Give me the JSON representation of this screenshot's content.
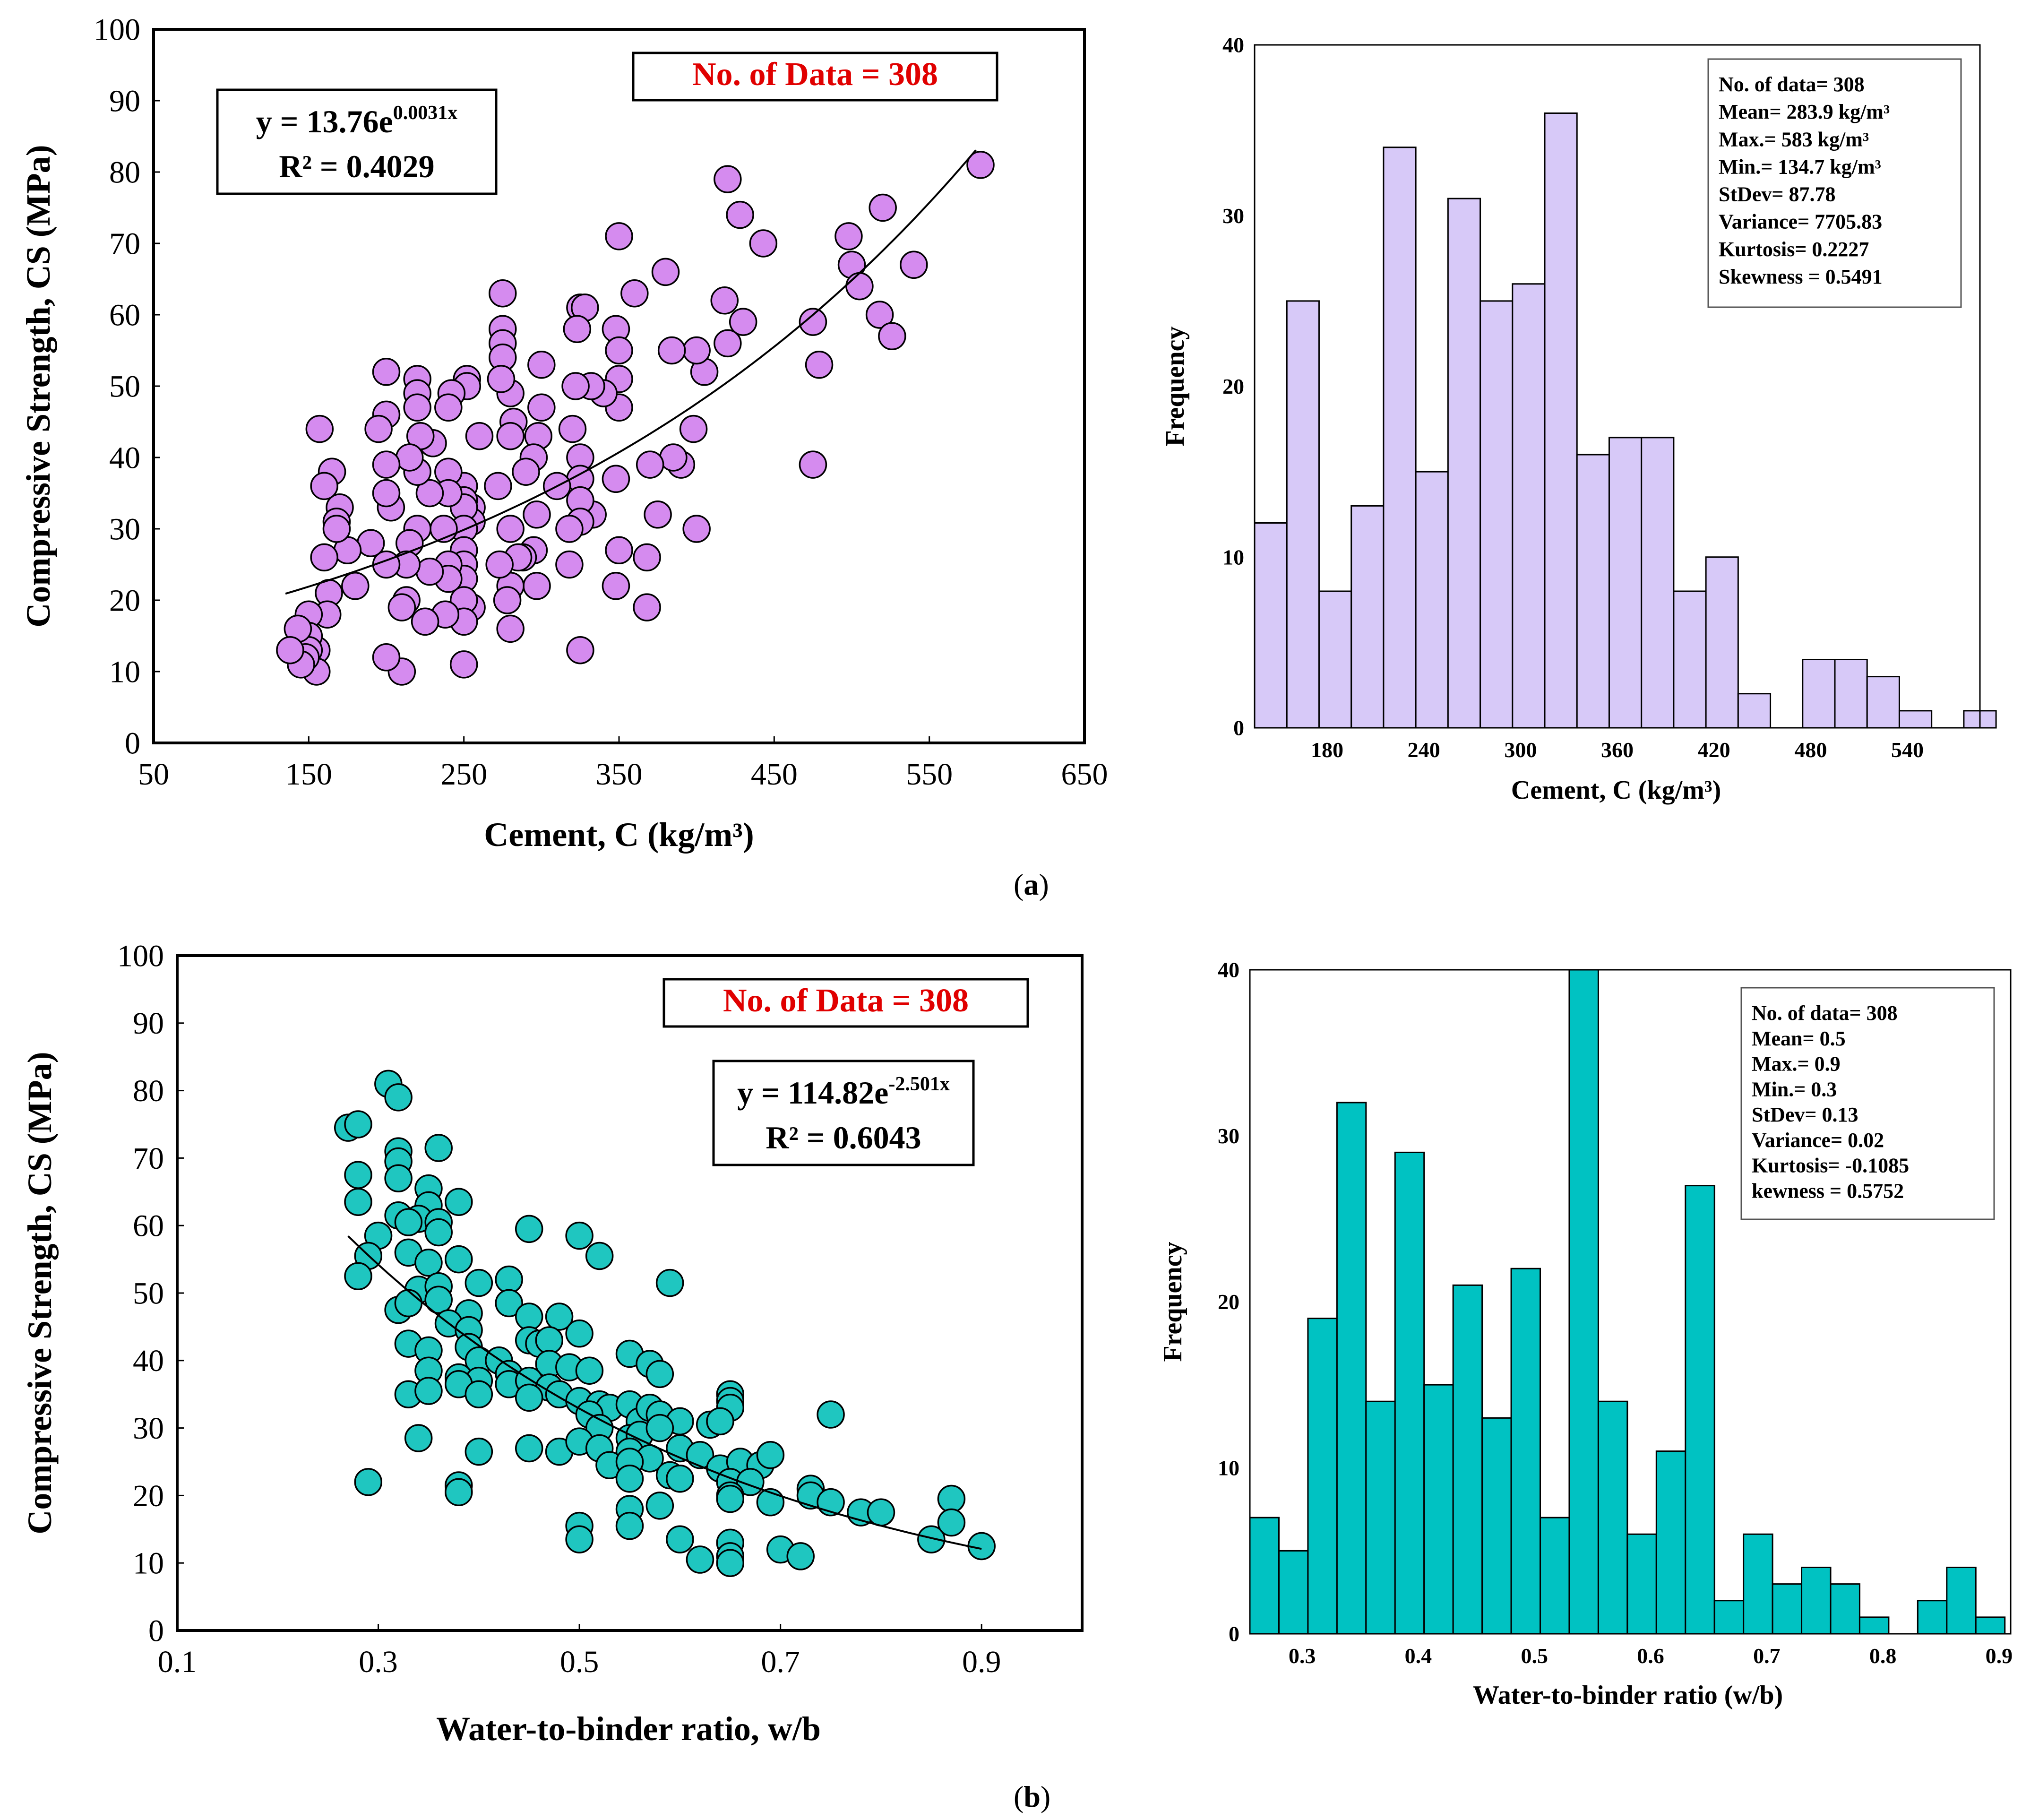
{
  "panel_labels": [
    "a",
    "b"
  ],
  "colors": {
    "scatter_a": "#D58BEF",
    "hist_a": "#D7C9F8",
    "scatter_b": "#1FC6C0",
    "hist_b": "#00C2C2",
    "highlight": "#E00000",
    "stroke": "#000000"
  },
  "chart_data": [
    {
      "id": "scatter_a",
      "type": "scatter",
      "xlabel": "Cement, C (kg/m³)",
      "ylabel": "Compressive Strength, CS (MPa)",
      "xlim": [
        50,
        650
      ],
      "ylim": [
        0,
        100
      ],
      "xticks": [
        50,
        150,
        250,
        350,
        450,
        550,
        650
      ],
      "yticks": [
        0,
        10,
        20,
        30,
        40,
        50,
        60,
        70,
        80,
        90,
        100
      ],
      "grid": false,
      "annotations": {
        "count_label": "No. of Data = 308",
        "equation_base": "y = 13.76e",
        "equation_exponent": "0.0031x",
        "r_squared": "R² = 0.4029"
      },
      "trendline": {
        "type": "exponential",
        "a": 13.76,
        "b": 0.0031,
        "x_range": [
          135,
          580
        ]
      },
      "points": [
        [
          583,
          81
        ],
        [
          520,
          75
        ],
        [
          498,
          71
        ],
        [
          540,
          67
        ],
        [
          500,
          67
        ],
        [
          505,
          64
        ],
        [
          518,
          60
        ],
        [
          526,
          57
        ],
        [
          475,
          59
        ],
        [
          479,
          53
        ],
        [
          475,
          39
        ],
        [
          420,
          79
        ],
        [
          428,
          74
        ],
        [
          443,
          70
        ],
        [
          418,
          62
        ],
        [
          430,
          59
        ],
        [
          420,
          56
        ],
        [
          405,
          52
        ],
        [
          400,
          55
        ],
        [
          398,
          44
        ],
        [
          400,
          30
        ],
        [
          390,
          39
        ],
        [
          385,
          40
        ],
        [
          380,
          66
        ],
        [
          384,
          55
        ],
        [
          375,
          32
        ],
        [
          370,
          39
        ],
        [
          368,
          26
        ],
        [
          368,
          19
        ],
        [
          360,
          63
        ],
        [
          350,
          71
        ],
        [
          348,
          58
        ],
        [
          350,
          55
        ],
        [
          350,
          51
        ],
        [
          350,
          47
        ],
        [
          348,
          37
        ],
        [
          350,
          27
        ],
        [
          348,
          22
        ],
        [
          340,
          49
        ],
        [
          332,
          50
        ],
        [
          333,
          32
        ],
        [
          325,
          61
        ],
        [
          328,
          61
        ],
        [
          323,
          58
        ],
        [
          322,
          50
        ],
        [
          320,
          44
        ],
        [
          325,
          40
        ],
        [
          325,
          37
        ],
        [
          325,
          34
        ],
        [
          325,
          31
        ],
        [
          318,
          30
        ],
        [
          318,
          25
        ],
        [
          325,
          13
        ],
        [
          310,
          36
        ],
        [
          300,
          53
        ],
        [
          300,
          47
        ],
        [
          298,
          43
        ],
        [
          295,
          40
        ],
        [
          297,
          32
        ],
        [
          295,
          27
        ],
        [
          297,
          22
        ],
        [
          290,
          38
        ],
        [
          288,
          26
        ],
        [
          285,
          26
        ],
        [
          280,
          49
        ],
        [
          282,
          45
        ],
        [
          280,
          43
        ],
        [
          280,
          30
        ],
        [
          280,
          22
        ],
        [
          278,
          20
        ],
        [
          280,
          16
        ],
        [
          275,
          63
        ],
        [
          275,
          58
        ],
        [
          275,
          56
        ],
        [
          275,
          54
        ],
        [
          274,
          51
        ],
        [
          272,
          36
        ],
        [
          273,
          25
        ],
        [
          260,
          43
        ],
        [
          255,
          33
        ],
        [
          255,
          31
        ],
        [
          255,
          19
        ],
        [
          252,
          51
        ],
        [
          252,
          50
        ],
        [
          250,
          36
        ],
        [
          250,
          34
        ],
        [
          250,
          33
        ],
        [
          250,
          30
        ],
        [
          250,
          27
        ],
        [
          250,
          25
        ],
        [
          250,
          23
        ],
        [
          250,
          20
        ],
        [
          250,
          17
        ],
        [
          250,
          11
        ],
        [
          242,
          49
        ],
        [
          240,
          47
        ],
        [
          240,
          38
        ],
        [
          240,
          35
        ],
        [
          237,
          30
        ],
        [
          240,
          25
        ],
        [
          240,
          23
        ],
        [
          238,
          18
        ],
        [
          230,
          42
        ],
        [
          228,
          35
        ],
        [
          228,
          24
        ],
        [
          225,
          17
        ],
        [
          220,
          51
        ],
        [
          220,
          49
        ],
        [
          220,
          47
        ],
        [
          222,
          43
        ],
        [
          220,
          38
        ],
        [
          220,
          30
        ],
        [
          215,
          40
        ],
        [
          215,
          28
        ],
        [
          213,
          25
        ],
        [
          213,
          20
        ],
        [
          210,
          19
        ],
        [
          210,
          10
        ],
        [
          203,
          33
        ],
        [
          200,
          52
        ],
        [
          200,
          46
        ],
        [
          200,
          39
        ],
        [
          200,
          35
        ],
        [
          200,
          25
        ],
        [
          200,
          12
        ],
        [
          195,
          44
        ],
        [
          190,
          28
        ],
        [
          180,
          22
        ],
        [
          175,
          27
        ],
        [
          170,
          33
        ],
        [
          168,
          31
        ],
        [
          168,
          30
        ],
        [
          165,
          38
        ],
        [
          163,
          21
        ],
        [
          162,
          18
        ],
        [
          160,
          36
        ],
        [
          160,
          26
        ],
        [
          157,
          44
        ],
        [
          155,
          13
        ],
        [
          155,
          10
        ],
        [
          150,
          18
        ],
        [
          150,
          15
        ],
        [
          150,
          13
        ],
        [
          148,
          12
        ],
        [
          145,
          11
        ],
        [
          143,
          16
        ],
        [
          138,
          13
        ]
      ]
    },
    {
      "id": "hist_a",
      "type": "bar",
      "xlabel": "Cement, C (kg/m³)",
      "ylabel": "Frequency",
      "xlim": [
        135,
        585
      ],
      "ylim": [
        0,
        40
      ],
      "xticks": [
        180,
        240,
        300,
        360,
        420,
        480,
        540
      ],
      "yticks": [
        0,
        10,
        20,
        30,
        40
      ],
      "grid": false,
      "bin_start": 135,
      "bin_width": 20,
      "values": [
        12,
        25,
        8,
        13,
        34,
        15,
        31,
        25,
        26,
        36,
        16,
        17,
        17,
        8,
        10,
        2,
        0,
        4,
        4,
        3,
        1,
        0,
        1
      ],
      "stats_box": [
        "No. of data= 308",
        "Mean= 283.9 kg/m³",
        "Max.= 583 kg/m³",
        "Min.= 134.7 kg/m³",
        "StDev= 87.78",
        "Variance= 7705.83",
        "Kurtosis= 0.2227",
        "Skewness = 0.5491"
      ]
    },
    {
      "id": "scatter_b",
      "type": "scatter",
      "xlabel": "Water-to-binder ratio, w/b",
      "ylabel": "Compressive Strength, CS (MPa)",
      "xlim": [
        0.1,
        1.0
      ],
      "ylim": [
        0,
        100
      ],
      "xticks": [
        0.1,
        0.3,
        0.5,
        0.7,
        0.9
      ],
      "yticks": [
        0,
        10,
        20,
        30,
        40,
        50,
        60,
        70,
        80,
        90,
        100
      ],
      "grid": false,
      "annotations": {
        "count_label": "No. of Data = 308",
        "equation_base": "y = 114.82e",
        "equation_exponent": "-2.501x",
        "r_squared": "R² = 0.6043"
      },
      "trendline": {
        "type": "exponential",
        "a": 114.82,
        "b": -2.501,
        "x_range": [
          0.27,
          0.9
        ]
      },
      "points": [
        [
          0.31,
          81
        ],
        [
          0.32,
          79
        ],
        [
          0.27,
          74.5
        ],
        [
          0.28,
          75
        ],
        [
          0.32,
          71
        ],
        [
          0.32,
          69.5
        ],
        [
          0.36,
          71.5
        ],
        [
          0.28,
          67.5
        ],
        [
          0.32,
          67
        ],
        [
          0.35,
          65.5
        ],
        [
          0.28,
          63.5
        ],
        [
          0.35,
          63
        ],
        [
          0.38,
          63.5
        ],
        [
          0.32,
          61.5
        ],
        [
          0.34,
          61
        ],
        [
          0.33,
          60.5
        ],
        [
          0.36,
          60.5
        ],
        [
          0.3,
          58.5
        ],
        [
          0.36,
          59
        ],
        [
          0.45,
          59.5
        ],
        [
          0.5,
          58.5
        ],
        [
          0.52,
          55.5
        ],
        [
          0.29,
          55.5
        ],
        [
          0.33,
          56
        ],
        [
          0.35,
          54.5
        ],
        [
          0.38,
          55
        ],
        [
          0.28,
          52.5
        ],
        [
          0.34,
          50.5
        ],
        [
          0.36,
          51
        ],
        [
          0.4,
          51.5
        ],
        [
          0.43,
          52
        ],
        [
          0.59,
          51.5
        ],
        [
          0.32,
          47.5
        ],
        [
          0.33,
          48.5
        ],
        [
          0.36,
          49
        ],
        [
          0.39,
          47
        ],
        [
          0.43,
          48.5
        ],
        [
          0.45,
          46.5
        ],
        [
          0.48,
          46.5
        ],
        [
          0.37,
          45.5
        ],
        [
          0.39,
          44.5
        ],
        [
          0.45,
          43
        ],
        [
          0.46,
          42.5
        ],
        [
          0.47,
          43
        ],
        [
          0.5,
          44
        ],
        [
          0.33,
          42.5
        ],
        [
          0.35,
          41.5
        ],
        [
          0.39,
          42
        ],
        [
          0.4,
          40
        ],
        [
          0.42,
          40
        ],
        [
          0.43,
          38
        ],
        [
          0.47,
          39.5
        ],
        [
          0.49,
          39
        ],
        [
          0.51,
          38.5
        ],
        [
          0.55,
          41
        ],
        [
          0.57,
          39.5
        ],
        [
          0.58,
          38
        ],
        [
          0.35,
          38.5
        ],
        [
          0.38,
          37.5
        ],
        [
          0.4,
          37
        ],
        [
          0.43,
          36.5
        ],
        [
          0.45,
          37
        ],
        [
          0.47,
          36
        ],
        [
          0.33,
          35
        ],
        [
          0.35,
          35.5
        ],
        [
          0.38,
          36.5
        ],
        [
          0.4,
          35
        ],
        [
          0.45,
          34.5
        ],
        [
          0.48,
          35
        ],
        [
          0.5,
          34
        ],
        [
          0.52,
          33.5
        ],
        [
          0.53,
          33
        ],
        [
          0.55,
          33.5
        ],
        [
          0.56,
          31
        ],
        [
          0.57,
          33
        ],
        [
          0.58,
          32
        ],
        [
          0.6,
          31
        ],
        [
          0.65,
          35
        ],
        [
          0.65,
          34
        ],
        [
          0.65,
          33
        ],
        [
          0.75,
          32
        ],
        [
          0.51,
          32
        ],
        [
          0.52,
          30
        ],
        [
          0.55,
          28.5
        ],
        [
          0.56,
          29
        ],
        [
          0.58,
          30
        ],
        [
          0.63,
          30.5
        ],
        [
          0.64,
          31
        ],
        [
          0.34,
          28.5
        ],
        [
          0.4,
          26.5
        ],
        [
          0.45,
          27
        ],
        [
          0.48,
          26.5
        ],
        [
          0.5,
          28
        ],
        [
          0.52,
          27
        ],
        [
          0.55,
          26.5
        ],
        [
          0.57,
          25.5
        ],
        [
          0.6,
          27
        ],
        [
          0.62,
          26
        ],
        [
          0.64,
          24
        ],
        [
          0.66,
          25
        ],
        [
          0.68,
          24.5
        ],
        [
          0.53,
          24.5
        ],
        [
          0.55,
          25
        ],
        [
          0.59,
          23
        ],
        [
          0.6,
          22.5
        ],
        [
          0.65,
          22
        ],
        [
          0.67,
          22
        ],
        [
          0.69,
          26
        ],
        [
          0.29,
          22
        ],
        [
          0.38,
          21.5
        ],
        [
          0.38,
          20.5
        ],
        [
          0.55,
          22.5
        ],
        [
          0.65,
          20
        ],
        [
          0.65,
          19.5
        ],
        [
          0.69,
          19
        ],
        [
          0.73,
          21
        ],
        [
          0.73,
          20
        ],
        [
          0.75,
          19
        ],
        [
          0.78,
          17.5
        ],
        [
          0.8,
          17.5
        ],
        [
          0.87,
          19.5
        ],
        [
          0.55,
          18
        ],
        [
          0.58,
          18.5
        ],
        [
          0.5,
          15.5
        ],
        [
          0.5,
          13.5
        ],
        [
          0.55,
          15.5
        ],
        [
          0.6,
          13.5
        ],
        [
          0.62,
          10.5
        ],
        [
          0.65,
          13
        ],
        [
          0.65,
          11
        ],
        [
          0.65,
          10
        ],
        [
          0.7,
          12
        ],
        [
          0.72,
          11
        ],
        [
          0.85,
          13.5
        ],
        [
          0.87,
          16
        ],
        [
          0.9,
          12.5
        ]
      ]
    },
    {
      "id": "hist_b",
      "type": "bar",
      "xlabel": "Water-to-binder ratio (w/b)",
      "ylabel": "Frequency",
      "xlim": [
        0.255,
        0.91
      ],
      "ylim": [
        0,
        40
      ],
      "xticks": [
        0.3,
        0.4,
        0.5,
        0.6,
        0.7,
        0.8,
        0.9
      ],
      "yticks": [
        0,
        10,
        20,
        30,
        40
      ],
      "grid": false,
      "bin_start": 0.255,
      "bin_width": 0.025,
      "values": [
        7,
        5,
        19,
        32,
        14,
        29,
        15,
        21,
        13,
        22,
        7,
        40,
        14,
        6,
        11,
        27,
        2,
        6,
        3,
        4,
        3,
        1,
        0,
        2,
        4,
        1
      ],
      "stats_box": [
        "No. of data= 308",
        "Mean= 0.5",
        "Max.= 0.9",
        "Min.= 0.3",
        "StDev= 0.13",
        "Variance= 0.02",
        "Kurtosis= -0.1085",
        "kewness = 0.5752"
      ]
    }
  ]
}
